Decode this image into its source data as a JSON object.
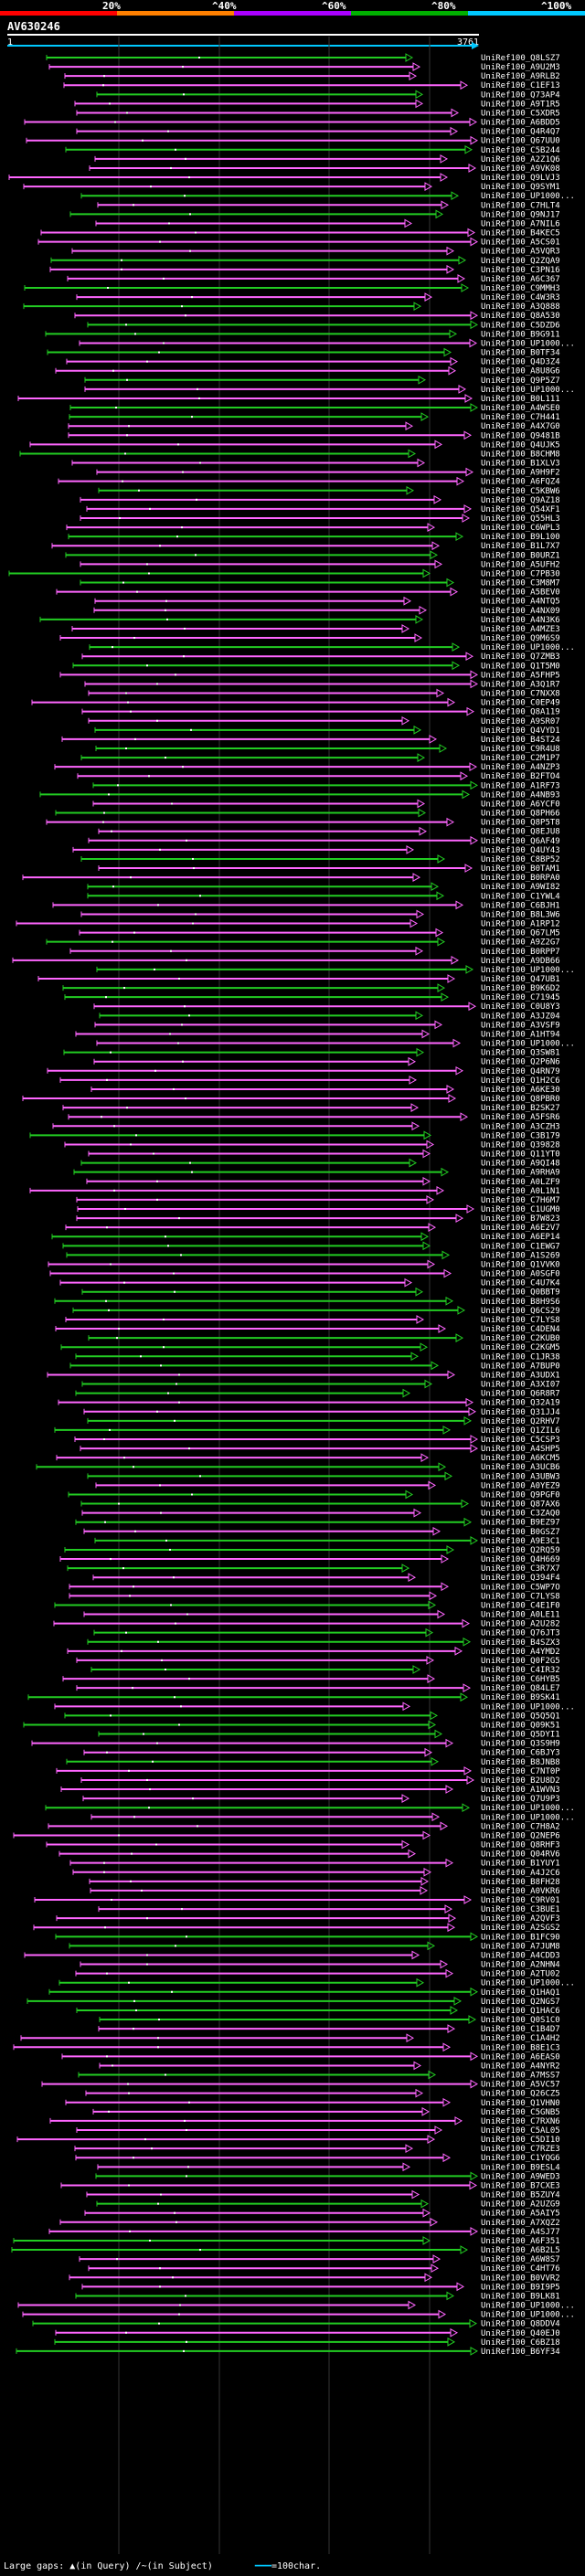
{
  "scale": {
    "labels": [
      "20%",
      "^40%",
      "^60%",
      "^80%",
      "^100%"
    ],
    "colors": [
      "#ff0000",
      "#ff8000",
      "#aa00ff",
      "#00b000",
      "#00c8ff"
    ]
  },
  "query": {
    "name": "AV630246",
    "start": "1",
    "end": "3761"
  },
  "colors": {
    "magenta": "#ff66ff",
    "green": "#22cc22",
    "cyan": "#00c8ff",
    "background": "#000000"
  },
  "hits": [
    "UniRef100_Q8LSZ7",
    "UniRef100_A9U2M3",
    "UniRef100_A9RLB2",
    "UniRef100_C1EF13",
    "UniRef100_Q73AP4",
    "UniRef100_A9T1R5",
    "UniRef100_C5XDR5",
    "UniRef100_A6BDD5",
    "UniRef100_Q4R4Q7",
    "UniRef100_Q67UU0",
    "UniRef100_C5B244",
    "UniRef100_A2Z1Q6",
    "UniRef100_A9VK08",
    "UniRef100_Q9LVJ3",
    "UniRef100_Q9SYM1",
    "UniRef100_UP1000...",
    "UniRef100_C7HLT4",
    "UniRef100_Q9NJ17",
    "UniRef100_A7NIL6",
    "UniRef100_B4KEC5",
    "UniRef100_A5CS01",
    "UniRef100_A5VQR3",
    "UniRef100_Q2ZQA9",
    "UniRef100_C3PN16",
    "UniRef100_A6C367",
    "UniRef100_C9MMH3",
    "UniRef100_C4W3R3",
    "UniRef100_A3Q888",
    "UniRef100_Q8A530",
    "UniRef100_C5DZD6",
    "UniRef100_B9G911",
    "UniRef100_UP1000...",
    "UniRef100_B0TF34",
    "UniRef100_Q4D3Z4",
    "UniRef100_A8U8G6",
    "UniRef100_Q9P5Z7",
    "UniRef100_UP1000...",
    "UniRef100_B0L111",
    "UniRef100_A4WSE0",
    "UniRef100_C7H441",
    "UniRef100_A4X7G0",
    "UniRef100_Q9481B",
    "UniRef100_Q4UJK5",
    "UniRef100_B8CHM8",
    "UniRef100_B1XLV3",
    "UniRef100_A9H9F2",
    "UniRef100_A6FQZ4",
    "UniRef100_C5KBW6",
    "UniRef100_Q9AZ18",
    "UniRef100_Q54XF1",
    "UniRef100_Q55HL3",
    "UniRef100_C6WPL3",
    "UniRef100_B9L100",
    "UniRef100_B1L7X7",
    "UniRef100_B0URZ1",
    "UniRef100_A5UFH2",
    "UniRef100_C7PB30",
    "UniRef100_C3M8M7",
    "UniRef100_A5BEV0",
    "UniRef100_A4NTQ5",
    "UniRef100_A4NX09",
    "UniRef100_A4N3K6",
    "UniRef100_A4MZE3",
    "UniRef100_Q9M6S9",
    "UniRef100_UP1000...",
    "UniRef100_Q7ZMB3",
    "UniRef100_Q1T5M0",
    "UniRef100_A5FHP5",
    "UniRef100_A3Q1R7",
    "UniRef100_C7NXX8",
    "UniRef100_C0EP49",
    "UniRef100_Q8A119",
    "UniRef100_A9SR07",
    "UniRef100_Q4VYD1",
    "UniRef100_B4ST24",
    "UniRef100_C9R4U8",
    "UniRef100_C2M1P7",
    "UniRef100_A4NZP3",
    "UniRef100_B2FTO4",
    "UniRef100_A1RF73",
    "UniRef100_A4NB93",
    "UniRef100_A6YCF0",
    "UniRef100_Q8PH66",
    "UniRef100_Q8P5T8",
    "UniRef100_Q8EJU8",
    "UniRef100_Q6AF49",
    "UniRef100_Q4UY43",
    "UniRef100_C8BP52",
    "UniRef100_B0TAM1",
    "UniRef100_B0RPA0",
    "UniRef100_A9WI82",
    "UniRef100_C1YWL4",
    "UniRef100_C6BJH1",
    "UniRef100_B8L3W6",
    "UniRef100_A1RP12",
    "UniRef100_Q67LM5",
    "UniRef100_A9Z2G7",
    "UniRef100_B0RPP7",
    "UniRef100_A9DB66",
    "UniRef100_UP1000...",
    "UniRef100_Q47UB1",
    "UniRef100_B9K6D2",
    "UniRef100_C71945",
    "UniRef100_C0U8Y3",
    "UniRef100_A3JZ04",
    "UniRef100_A3VSF9",
    "UniRef100_A1HT94",
    "UniRef100_UP1000...",
    "UniRef100_Q3SW81",
    "UniRef100_Q2P6N6",
    "UniRef100_Q4RN79",
    "UniRef100_Q1H2C6",
    "UniRef100_A6KE30",
    "UniRef100_Q8PBR0",
    "UniRef100_B2SK27",
    "UniRef100_A5FSR6",
    "UniRef100_A3CZH3",
    "UniRef100_C3B179",
    "UniRef100_Q39828",
    "UniRef100_Q11YT0",
    "UniRef100_A9QI48",
    "UniRef100_A9RHA9",
    "UniRef100_A0LZF9",
    "UniRef100_A0L1N1",
    "UniRef100_C7H6M7",
    "UniRef100_C1UGM0",
    "UniRef100_B7W823",
    "UniRef100_A6E2V7",
    "UniRef100_A6EP14",
    "UniRef100_C1EWG7",
    "UniRef100_A1S269",
    "UniRef100_Q1VVK0",
    "UniRef100_A0SGF0",
    "UniRef100_C4U7K4",
    "UniRef100_Q0BBT9",
    "UniRef100_B8H9S6",
    "UniRef100_Q6CS29",
    "UniRef100_C7LYS8",
    "UniRef100_C4DEN4",
    "UniRef100_C2KUB0",
    "UniRef100_C2KGM5",
    "UniRef100_C1JR38",
    "UniRef100_A7BUP0",
    "UniRef100_A3UDX1",
    "UniRef100_A3XI07",
    "UniRef100_Q6R8R7",
    "UniRef100_Q32A19",
    "UniRef100_Q31JJ4",
    "UniRef100_Q2RHV7",
    "UniRef100_Q1ZIL6",
    "UniRef100_C5CSP3",
    "UniRef100_A4SHP5",
    "UniRef100_A6KCM5",
    "UniRef100_A3UCB6",
    "UniRef100_A3UBW3",
    "UniRef100_A0YEZ9",
    "UniRef100_Q9PGF0",
    "UniRef100_Q87AX6",
    "UniRef100_C3ZAQ0",
    "UniRef100_B9EZ97",
    "UniRef100_B0GSZ7",
    "UniRef100_A9E3C1",
    "UniRef100_Q2RQ59",
    "UniRef100_Q4H669",
    "UniRef100_C3R7X7",
    "UniRef100_Q394F4",
    "UniRef100_C5WP7O",
    "UniRef100_C7LYS8",
    "UniRef100_C4E1F0",
    "UniRef100_A0LE11",
    "UniRef100_A2U282",
    "UniRef100_Q76JT3",
    "UniRef100_B4SZX3",
    "UniRef100_A4YMD2",
    "UniRef100_Q0F2G5",
    "UniRef100_C4IR32",
    "UniRef100_C6HYB5",
    "UniRef100_Q84LE7",
    "UniRef100_B9SK41",
    "UniRef100_UP1000...",
    "UniRef100_Q5Q5Q1",
    "UniRef100_Q09K51",
    "UniRef100_Q5DYI1",
    "UniRef100_Q3S9H9",
    "UniRef100_C6BJY3",
    "UniRef100_B8JNB8",
    "UniRef100_C7NT0P",
    "UniRef100_B2U8D2",
    "UniRef100_A1WVN3",
    "UniRef100_Q7U9P3",
    "UniRef100_UP1000...",
    "UniRef100_UP1000...",
    "UniRef100_C7H8A2",
    "UniRef100_Q2NEP6",
    "UniRef100_Q8RHF3",
    "UniRef100_Q04RV6",
    "UniRef100_B1YUY1",
    "UniRef100_A4J2C6",
    "UniRef100_B8FH28",
    "UniRef100_A0VKR6",
    "UniRef100_C9RV01",
    "UniRef100_C3BUE1",
    "UniRef100_A2QVF3",
    "UniRef100_A2SGS2",
    "UniRef100_B1FC90",
    "UniRef100_A7JUM8",
    "UniRef100_A4CDD3",
    "UniRef100_A2NHN4",
    "UniRef100_A2TU02",
    "UniRef100_UP1000...",
    "UniRef100_Q1HAQ1",
    "UniRef100_Q2NGS7",
    "UniRef100_Q1HAC6",
    "UniRef100_Q0S1C0",
    "UniRef100_C1B4D7",
    "UniRef100_C1A4H2",
    "UniRef100_B8E1C3",
    "UniRef100_A6EAS0",
    "UniRef100_A4NYR2",
    "UniRef100_A7MSS7",
    "UniRef100_A5VC57",
    "UniRef100_Q26CZ5",
    "UniRef100_Q1VHN0",
    "UniRef100_C5GNB5",
    "UniRef100_C7RXN6",
    "UniRef100_C5AL05",
    "UniRef100_C5DI10",
    "UniRef100_C7RZE3",
    "UniRef100_C1YQG6",
    "UniRef100_B9ESL4",
    "UniRef100_A9WED3",
    "UniRef100_B7CXE3",
    "UniRef100_B5ZUY4",
    "UniRef100_A2UZG9",
    "UniRef100_A5AIY5",
    "UniRef100_A7XQZ2",
    "UniRef100_A4SJ77",
    "UniRef100_A6F351",
    "UniRef100_A6B2L5",
    "UniRef100_A6W8S7",
    "UniRef100_C4HT76",
    "UniRef100_B0VVR2",
    "UniRef100_B9I9P5",
    "UniRef100_B9LK81",
    "UniRef100_UP1000...",
    "UniRef100_UP1000...",
    "UniRef100_Q8DDV4",
    "UniRef100_Q40EJ0",
    "UniRef100_C6BZ18",
    "UniRef100_B6YF34"
  ],
  "footer": {
    "large_gaps_label": "Large gaps:",
    "gap_query": "(in Query)",
    "gap_subject": "(in Subject)",
    "scale_note": "=100char."
  }
}
